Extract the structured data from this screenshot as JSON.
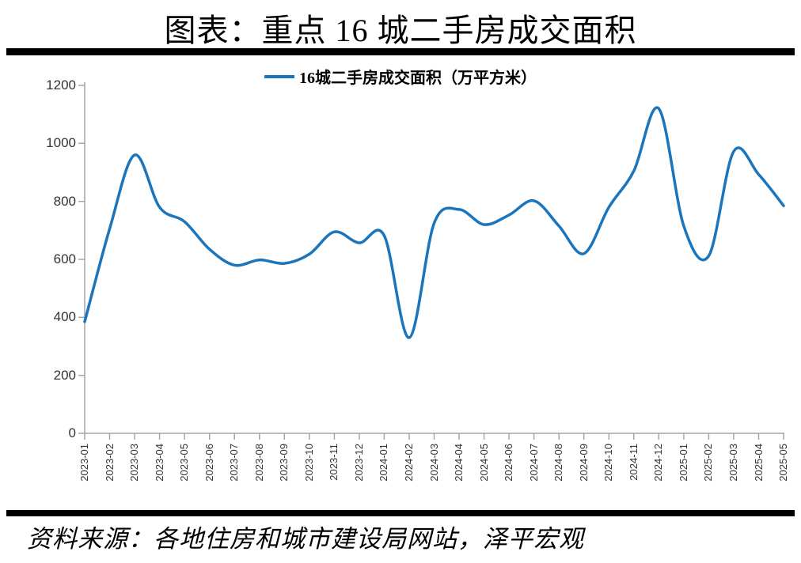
{
  "title": "图表：重点 16 城二手房成交面积",
  "legend": {
    "label": "16城二手房成交面积（万平方米）"
  },
  "source": "资料来源：各地住房和城市建设局网站，泽平宏观",
  "colors": {
    "line": "#1B75BC",
    "axis": "#A6A6A6",
    "tick_label": "#333333",
    "rule": "#000000"
  },
  "chart_data": {
    "type": "line",
    "title": "图表：重点 16 城二手房成交面积",
    "smooth": true,
    "grid": false,
    "legend_position": "top",
    "xlabel": "",
    "ylabel": "",
    "ylim": [
      0,
      1200
    ],
    "yticks": [
      0,
      200,
      400,
      600,
      800,
      1000,
      1200
    ],
    "categories": [
      "2023-01",
      "2023-02",
      "2023-03",
      "2023-04",
      "2023-05",
      "2023-06",
      "2023-07",
      "2023-08",
      "2023-09",
      "2023-10",
      "2023-11",
      "2023-12",
      "2024-01",
      "2024-02",
      "2024-03",
      "2024-04",
      "2024-05",
      "2024-06",
      "2024-07",
      "2024-08",
      "2024-09",
      "2024-10",
      "2024-11",
      "2024-12",
      "2025-01",
      "2025-02",
      "2025-03",
      "2025-04",
      "2025-05"
    ],
    "series": [
      {
        "name": "16城二手房成交面积（万平方米）",
        "values": [
          385,
          705,
          960,
          780,
          730,
          635,
          580,
          598,
          586,
          618,
          695,
          657,
          682,
          330,
          725,
          772,
          720,
          753,
          802,
          715,
          620,
          780,
          905,
          1120,
          715,
          612,
          972,
          893,
          785
        ]
      }
    ]
  }
}
